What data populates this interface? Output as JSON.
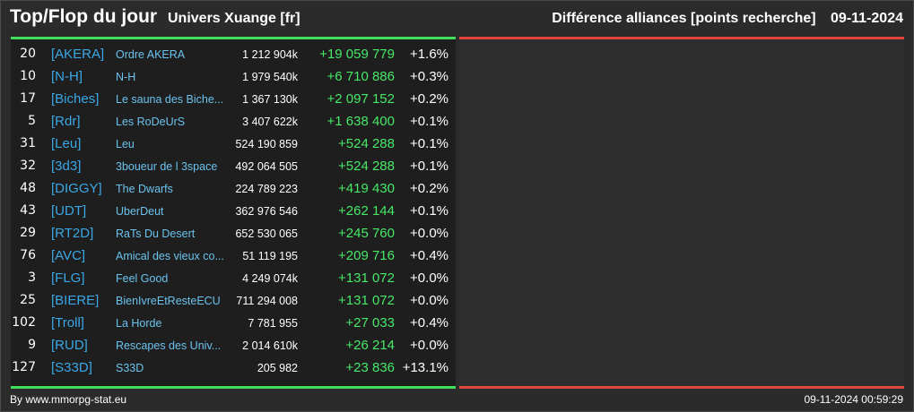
{
  "header": {
    "title": "Top/Flop du jour",
    "subtitle": "Univers Xuange [fr]",
    "right_title": "Différence alliances [points recherche]",
    "date": "09-11-2024"
  },
  "colors": {
    "accent_green": "#3fe05a",
    "accent_red": "#e0463c",
    "tag_blue": "#3aa8e6",
    "name_blue": "#6bc3ee",
    "diff_green": "#48e868"
  },
  "rows": [
    {
      "rank": "20",
      "tag": "[AKERA]",
      "name": "Ordre AKERA",
      "points": "1 212 904k",
      "diff": "+19 059 779",
      "pct": "+1.6%"
    },
    {
      "rank": "10",
      "tag": "[N-H]",
      "name": "N-H",
      "points": "1 979 540k",
      "diff": "+6 710 886",
      "pct": "+0.3%"
    },
    {
      "rank": "17",
      "tag": "[Biches]",
      "name": "Le sauna des Biche...",
      "points": "1 367 130k",
      "diff": "+2 097 152",
      "pct": "+0.2%"
    },
    {
      "rank": "5",
      "tag": "[Rdr]",
      "name": "Les RoDeUrS",
      "points": "3 407 622k",
      "diff": "+1 638 400",
      "pct": "+0.1%"
    },
    {
      "rank": "31",
      "tag": "[Leu]",
      "name": "Leu",
      "points": "524 190 859",
      "diff": "+524 288",
      "pct": "+0.1%"
    },
    {
      "rank": "32",
      "tag": "[3d3]",
      "name": "3boueur de l 3space",
      "points": "492 064 505",
      "diff": "+524 288",
      "pct": "+0.1%"
    },
    {
      "rank": "48",
      "tag": "[DIGGY]",
      "name": "The Dwarfs",
      "points": "224 789 223",
      "diff": "+419 430",
      "pct": "+0.2%"
    },
    {
      "rank": "43",
      "tag": "[UDT]",
      "name": "UberDeut",
      "points": "362 976 546",
      "diff": "+262 144",
      "pct": "+0.1%"
    },
    {
      "rank": "29",
      "tag": "[RT2D]",
      "name": "RaTs Du Desert",
      "points": "652 530 065",
      "diff": "+245 760",
      "pct": "+0.0%"
    },
    {
      "rank": "76",
      "tag": "[AVC]",
      "name": "Amical des vieux co...",
      "points": "51 119 195",
      "diff": "+209 716",
      "pct": "+0.4%"
    },
    {
      "rank": "3",
      "tag": "[FLG]",
      "name": "Feel Good",
      "points": "4 249 074k",
      "diff": "+131 072",
      "pct": "+0.0%"
    },
    {
      "rank": "25",
      "tag": "[BIERE]",
      "name": "BienIvreEtResteECU",
      "points": "711 294 008",
      "diff": "+131 072",
      "pct": "+0.0%"
    },
    {
      "rank": "102",
      "tag": "[Troll]",
      "name": "La Horde",
      "points": "7 781 955",
      "diff": "+27 033",
      "pct": "+0.4%"
    },
    {
      "rank": "9",
      "tag": "[RUD]",
      "name": "Rescapes des Univ...",
      "points": "2 014 610k",
      "diff": "+26 214",
      "pct": "+0.0%"
    },
    {
      "rank": "127",
      "tag": "[S33D]",
      "name": "S33D",
      "points": "205 982",
      "diff": "+23 836",
      "pct": "+13.1%"
    }
  ],
  "footer": {
    "source": "By www.mmorpg-stat.eu",
    "timestamp": "09-11-2024 00:59:29"
  }
}
